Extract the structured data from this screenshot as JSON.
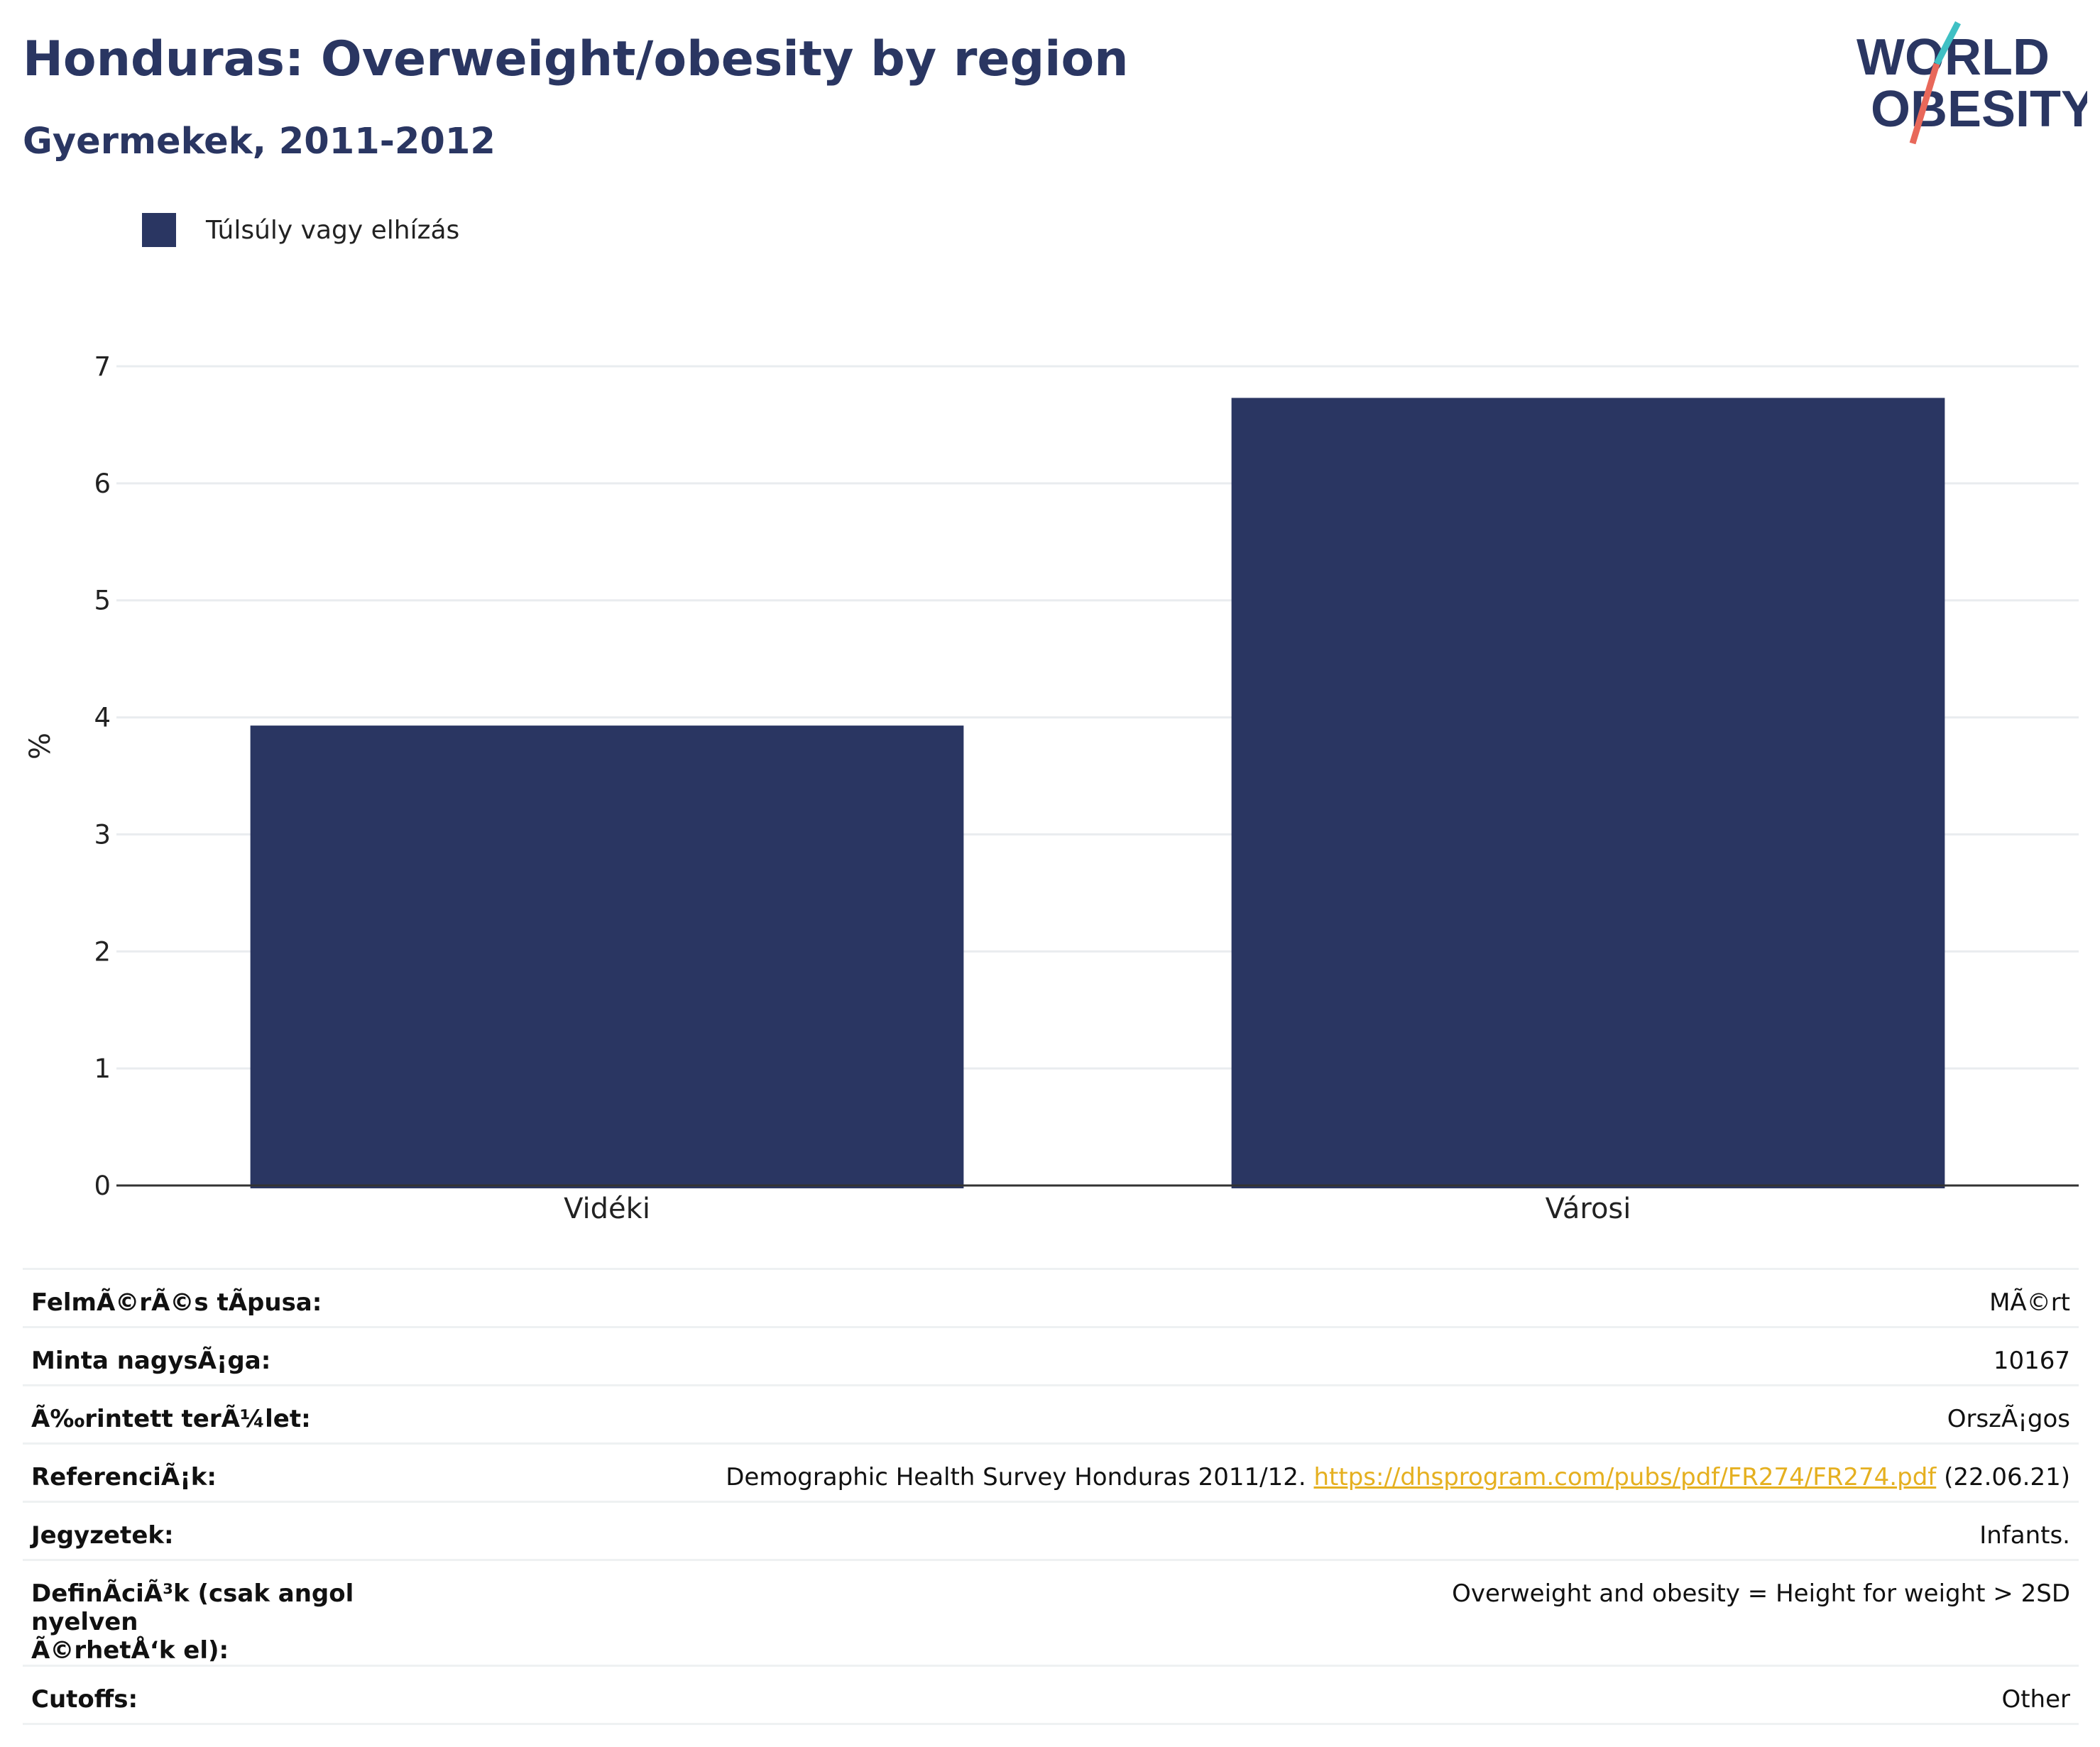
{
  "title": "Honduras: Overweight/obesity by region",
  "subtitle": "Gyermekek, 2011-2012",
  "logo": {
    "line1": "WORLD",
    "line2": "OBESITY",
    "colors": {
      "text": "#2a3662",
      "slash_top": "#3fc0c4",
      "slash_bottom": "#e8685a"
    }
  },
  "colors": {
    "bar": "#2a3662",
    "grid": "#e9ecef",
    "axis": "#333333",
    "link": "#e5b020"
  },
  "legend": {
    "label": "Túlsúly vagy elhízás"
  },
  "chart_data": {
    "type": "bar",
    "categories": [
      "Vidéki",
      "Városi"
    ],
    "series": [
      {
        "name": "Túlsúly vagy elhízás",
        "values": [
          3.93,
          6.73
        ]
      }
    ],
    "ylabel": "%",
    "xlabel": "",
    "ylim": [
      0,
      7
    ],
    "yticks": [
      "0",
      "1",
      "2",
      "3",
      "4",
      "5",
      "6",
      "7"
    ],
    "grid": true,
    "legend_position": "top-left"
  },
  "meta": {
    "survey_type_label": "FelmÃ©rÃ©s tÃpusa:",
    "survey_type_value": "MÃ©rt",
    "sample_size_label": "Minta nagysÃ¡ga:",
    "sample_size_value": "10167",
    "area_label": "Ã‰rintett terÃ¼let:",
    "area_value": "OrszÃ¡gos",
    "references_label": "ReferenciÃ¡k:",
    "references_text": "Demographic Health Survey Honduras 2011/12.",
    "references_link": "https://dhsprogram.com/pubs/pdf/FR274/FR274.pdf",
    "references_date": "(22.06.21)",
    "notes_label": "Jegyzetek:",
    "notes_value": "Infants.",
    "definitions_label_1": "DefinÃciÃ³k (csak angol nyelven",
    "definitions_label_2": "Ã©rhetÅ‘k el):",
    "definitions_value": "Overweight and obesity = Height for weight > 2SD",
    "cutoffs_label": "Cutoffs:",
    "cutoffs_value": "Other"
  }
}
